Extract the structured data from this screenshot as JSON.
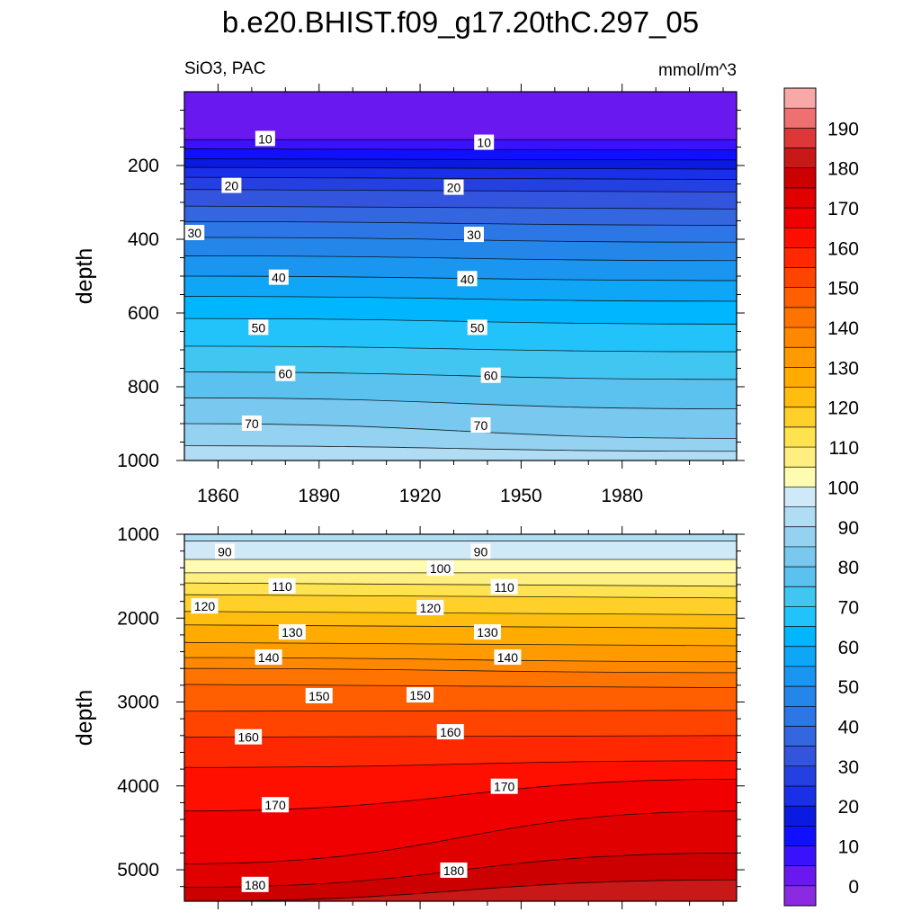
{
  "chart_data": {
    "type": "contour",
    "title": "b.e20.BHIST.f09_g17.20thC.297_05",
    "subtitle_left": "SiO3, PAC",
    "units": "mmol/m^3",
    "xlim": [
      1850,
      2014
    ],
    "x_ticks": [
      1860,
      1890,
      1920,
      1950,
      1980
    ],
    "x_minor_step": 10,
    "colorbar": {
      "levels": [
        -5,
        0,
        5,
        10,
        15,
        20,
        25,
        30,
        35,
        40,
        45,
        50,
        55,
        60,
        65,
        70,
        75,
        80,
        85,
        90,
        95,
        100,
        105,
        110,
        115,
        120,
        125,
        130,
        135,
        140,
        145,
        150,
        155,
        160,
        165,
        170,
        175,
        180,
        185,
        190,
        195
      ],
      "tick_labels": [
        "0",
        "10",
        "20",
        "30",
        "40",
        "50",
        "60",
        "70",
        "80",
        "90",
        "100",
        "110",
        "120",
        "130",
        "140",
        "150",
        "160",
        "170",
        "180",
        "190"
      ],
      "colors": [
        "#8a2be2",
        "#6a18f0",
        "#3a12ff",
        "#1010ff",
        "#0a1ae0",
        "#1a2fe8",
        "#2540e0",
        "#3355dd",
        "#3466e0",
        "#2c76e6",
        "#2586ea",
        "#1b96f0",
        "#10a6f8",
        "#00b7ff",
        "#22c3fb",
        "#41c6f2",
        "#5bc2ef",
        "#78c8f0",
        "#95d1f0",
        "#b0dcf4",
        "#cfe9f8",
        "#fffbb0",
        "#ffee80",
        "#ffe250",
        "#ffd02a",
        "#ffbd10",
        "#ffab00",
        "#ff9a00",
        "#ff8800",
        "#ff7400",
        "#ff5f00",
        "#ff4400",
        "#ff2800",
        "#ff0f00",
        "#f00000",
        "#e00000",
        "#cc0000",
        "#c81818",
        "#dc3838",
        "#ef7070",
        "#f9a8a8"
      ]
    },
    "panels": [
      {
        "name": "upper",
        "ylabel": "depth",
        "ylim": [
          0,
          1000
        ],
        "y_ticks": [
          200,
          400,
          600,
          800,
          1000
        ],
        "y_minor_step": 50,
        "show_x_tick_labels": true,
        "contour_lines": [
          {
            "value": 5,
            "depth_start": 130,
            "depth_end": 130
          },
          {
            "value": 10,
            "depth_start": 155,
            "depth_end": 158
          },
          {
            "value": 15,
            "depth_start": 182,
            "depth_end": 185
          },
          {
            "value": 20,
            "depth_start": 205,
            "depth_end": 210
          },
          {
            "value": 25,
            "depth_start": 232,
            "depth_end": 238
          },
          {
            "value": 30,
            "depth_start": 265,
            "depth_end": 272
          },
          {
            "value": 35,
            "depth_start": 310,
            "depth_end": 318
          },
          {
            "value": 40,
            "depth_start": 352,
            "depth_end": 362
          },
          {
            "value": 45,
            "depth_start": 395,
            "depth_end": 408
          },
          {
            "value": 50,
            "depth_start": 445,
            "depth_end": 458
          },
          {
            "value": 55,
            "depth_start": 500,
            "depth_end": 512
          },
          {
            "value": 60,
            "depth_start": 555,
            "depth_end": 568
          },
          {
            "value": 65,
            "depth_start": 615,
            "depth_end": 630
          },
          {
            "value": 70,
            "depth_start": 690,
            "depth_end": 705
          },
          {
            "value": 75,
            "depth_start": 760,
            "depth_end": 780
          },
          {
            "value": 80,
            "depth_start": 830,
            "depth_end": 860
          },
          {
            "value": 85,
            "depth_start": 900,
            "depth_end": 940
          },
          {
            "value": 90,
            "depth_start": 960,
            "depth_end": 975
          }
        ],
        "contour_labels": [
          {
            "text": "10",
            "year": 1874,
            "depth": 128
          },
          {
            "text": "10",
            "year": 1939,
            "depth": 138
          },
          {
            "text": "20",
            "year": 1864,
            "depth": 255
          },
          {
            "text": "20",
            "year": 1930,
            "depth": 260
          },
          {
            "text": "30",
            "year": 1853,
            "depth": 383
          },
          {
            "text": "30",
            "year": 1936,
            "depth": 388
          },
          {
            "text": "40",
            "year": 1878,
            "depth": 504
          },
          {
            "text": "40",
            "year": 1934,
            "depth": 508
          },
          {
            "text": "50",
            "year": 1872,
            "depth": 640
          },
          {
            "text": "50",
            "year": 1937,
            "depth": 640
          },
          {
            "text": "60",
            "year": 1880,
            "depth": 765
          },
          {
            "text": "60",
            "year": 1941,
            "depth": 770
          },
          {
            "text": "70",
            "year": 1870,
            "depth": 900
          },
          {
            "text": "70",
            "year": 1938,
            "depth": 905
          }
        ]
      },
      {
        "name": "lower",
        "ylabel": "depth",
        "ylim": [
          1000,
          5375
        ],
        "y_ticks": [
          1000,
          2000,
          3000,
          4000,
          5000
        ],
        "y_minor_step": 200,
        "show_x_tick_labels": false,
        "contour_lines": [
          {
            "value": 95,
            "depth_start": 1080,
            "depth_end": 1080
          },
          {
            "value": 100,
            "depth_start": 1300,
            "depth_end": 1300
          },
          {
            "value": 105,
            "depth_start": 1460,
            "depth_end": 1460
          },
          {
            "value": 110,
            "depth_start": 1580,
            "depth_end": 1620
          },
          {
            "value": 115,
            "depth_start": 1720,
            "depth_end": 1760
          },
          {
            "value": 120,
            "depth_start": 1920,
            "depth_end": 1960
          },
          {
            "value": 125,
            "depth_start": 2080,
            "depth_end": 2120
          },
          {
            "value": 130,
            "depth_start": 2290,
            "depth_end": 2330
          },
          {
            "value": 135,
            "depth_start": 2470,
            "depth_end": 2520
          },
          {
            "value": 140,
            "depth_start": 2600,
            "depth_end": 2650
          },
          {
            "value": 145,
            "depth_start": 2790,
            "depth_end": 2830
          },
          {
            "value": 150,
            "depth_start": 3110,
            "depth_end": 3100
          },
          {
            "value": 155,
            "depth_start": 3420,
            "depth_end": 3400
          },
          {
            "value": 160,
            "depth_start": 3780,
            "depth_end": 3700
          },
          {
            "value": 165,
            "depth_start": 4300,
            "depth_end": 3920
          },
          {
            "value": 170,
            "depth_start": 4930,
            "depth_end": 4300
          },
          {
            "value": 175,
            "depth_start": 5210,
            "depth_end": 4800
          },
          {
            "value": 180,
            "depth_start": 5375,
            "depth_end": 5120
          }
        ],
        "contour_labels": [
          {
            "text": "90",
            "year": 1862,
            "depth": 1210
          },
          {
            "text": "90",
            "year": 1938,
            "depth": 1210
          },
          {
            "text": "100",
            "year": 1926,
            "depth": 1410
          },
          {
            "text": "110",
            "year": 1879,
            "depth": 1620
          },
          {
            "text": "110",
            "year": 1945,
            "depth": 1630
          },
          {
            "text": "120",
            "year": 1856,
            "depth": 1860
          },
          {
            "text": "120",
            "year": 1923,
            "depth": 1880
          },
          {
            "text": "130",
            "year": 1882,
            "depth": 2170
          },
          {
            "text": "130",
            "year": 1940,
            "depth": 2170
          },
          {
            "text": "140",
            "year": 1875,
            "depth": 2470
          },
          {
            "text": "140",
            "year": 1946,
            "depth": 2470
          },
          {
            "text": "150",
            "year": 1890,
            "depth": 2930
          },
          {
            "text": "150",
            "year": 1920,
            "depth": 2920
          },
          {
            "text": "160",
            "year": 1869,
            "depth": 3420
          },
          {
            "text": "160",
            "year": 1929,
            "depth": 3360
          },
          {
            "text": "170",
            "year": 1877,
            "depth": 4230
          },
          {
            "text": "170",
            "year": 1945,
            "depth": 4010
          },
          {
            "text": "180",
            "year": 1871,
            "depth": 5180
          },
          {
            "text": "180",
            "year": 1930,
            "depth": 5010
          }
        ]
      }
    ]
  }
}
